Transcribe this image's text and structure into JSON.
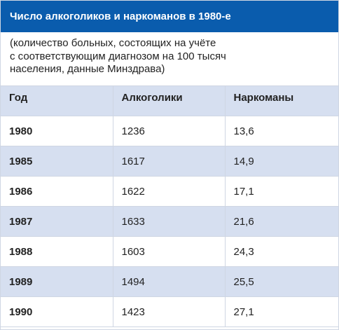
{
  "title": "Число алкоголиков и наркоманов в 1980-е",
  "subtitle_lines": [
    "(количество больных, состоящих на учёте",
    "с соответствующим диагнозом на 100 тысяч",
    "населения, данные Минздрава)"
  ],
  "colors": {
    "header_bg": "#0a5cad",
    "row_shade": "#d6dff0",
    "border": "#cfd6e3"
  },
  "chart_data": {
    "type": "table",
    "title": "Число алкоголиков и наркоманов в 1980-е",
    "columns": [
      "Год",
      "Алкоголики",
      "Наркоманы"
    ],
    "rows": [
      [
        "1980",
        "1236",
        "13,6"
      ],
      [
        "1985",
        "1617",
        "14,9"
      ],
      [
        "1986",
        "1622",
        "17,1"
      ],
      [
        "1987",
        "1633",
        "21,6"
      ],
      [
        "1988",
        "1603",
        "24,3"
      ],
      [
        "1989",
        "1494",
        "25,5"
      ],
      [
        "1990",
        "1423",
        "27,1"
      ]
    ]
  }
}
